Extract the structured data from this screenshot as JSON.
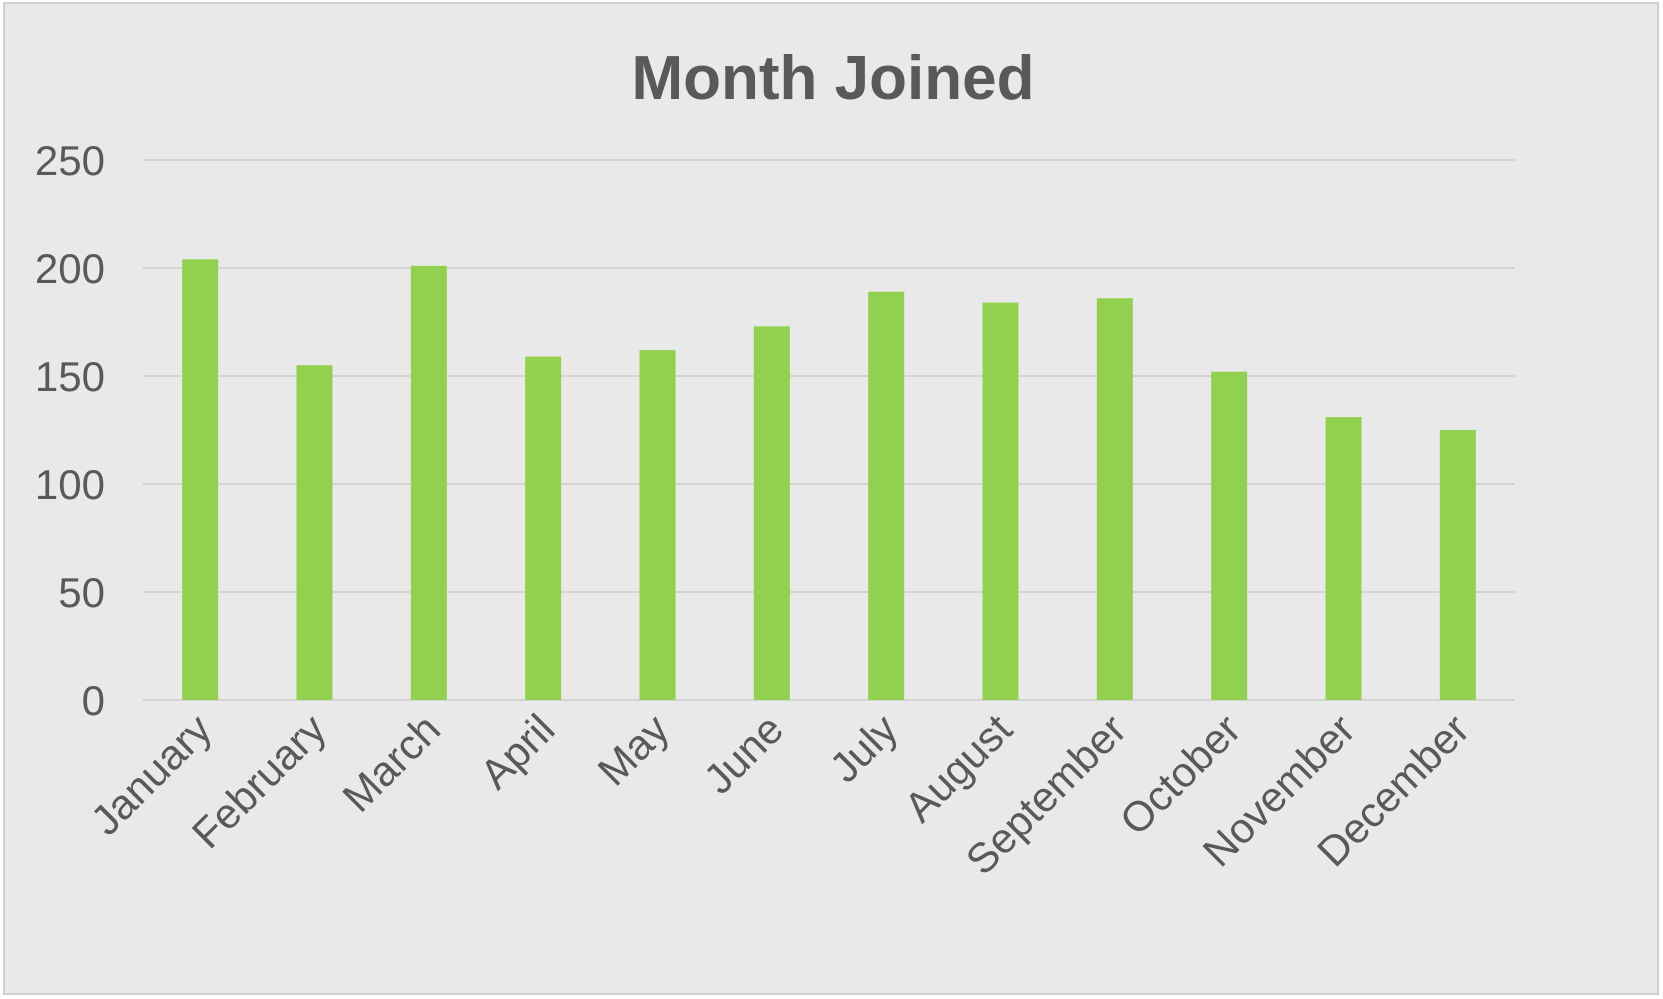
{
  "chart_data": {
    "type": "bar",
    "title": "Month Joined",
    "xlabel": "",
    "ylabel": "",
    "categories": [
      "January",
      "February",
      "March",
      "April",
      "May",
      "June",
      "July",
      "August",
      "September",
      "October",
      "November",
      "December"
    ],
    "values": [
      204,
      155,
      201,
      159,
      162,
      173,
      189,
      184,
      186,
      152,
      131,
      125
    ],
    "ylim": [
      0,
      250
    ],
    "yticks": [
      "0",
      "50",
      "100",
      "150",
      "200",
      "250"
    ],
    "grid": true,
    "legend": "none",
    "colors": {
      "bar": "#92d050",
      "background": "#e9e9e9",
      "text": "#595959",
      "grid": "#d4d4d4"
    }
  }
}
